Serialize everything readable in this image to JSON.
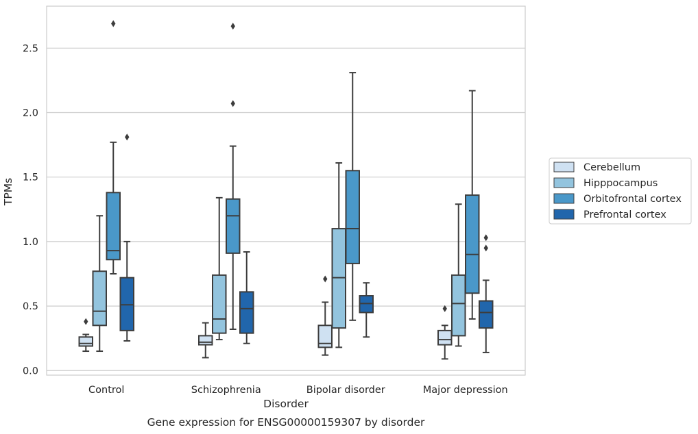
{
  "chart_data": {
    "type": "box",
    "caption": "Gene expression for ENSG00000159307 by disorder",
    "xlabel": "Disorder",
    "ylabel": "TPMs",
    "ylim": [
      -0.03,
      2.83
    ],
    "yticks": [
      "0.0",
      "0.5",
      "1.0",
      "1.5",
      "2.0",
      "2.5"
    ],
    "ytick_values": [
      0.0,
      0.5,
      1.0,
      1.5,
      2.0,
      2.5
    ],
    "categories": [
      "Control",
      "Schizophrenia",
      "Bipolar disorder",
      "Major depression"
    ],
    "grid": "horizontal",
    "legend_position": "right",
    "series": [
      {
        "name": "Cerebellum",
        "color": "#cfe1f2",
        "boxes": [
          {
            "whislo": 0.15,
            "q1": 0.19,
            "med": 0.21,
            "q3": 0.26,
            "whishi": 0.28,
            "fliers": [
              0.38
            ]
          },
          {
            "whislo": 0.1,
            "q1": 0.2,
            "med": 0.22,
            "q3": 0.27,
            "whishi": 0.37,
            "fliers": []
          },
          {
            "whislo": 0.12,
            "q1": 0.18,
            "med": 0.21,
            "q3": 0.35,
            "whishi": 0.53,
            "fliers": [
              0.71
            ]
          },
          {
            "whislo": 0.09,
            "q1": 0.2,
            "med": 0.24,
            "q3": 0.31,
            "whishi": 0.35,
            "fliers": [
              0.48
            ]
          }
        ]
      },
      {
        "name": "Hipppocampus",
        "color": "#93c4de",
        "boxes": [
          {
            "whislo": 0.15,
            "q1": 0.35,
            "med": 0.46,
            "q3": 0.77,
            "whishi": 1.2,
            "fliers": []
          },
          {
            "whislo": 0.24,
            "q1": 0.29,
            "med": 0.4,
            "q3": 0.74,
            "whishi": 1.34,
            "fliers": []
          },
          {
            "whislo": 0.18,
            "q1": 0.33,
            "med": 0.72,
            "q3": 1.1,
            "whishi": 1.61,
            "fliers": []
          },
          {
            "whislo": 0.19,
            "q1": 0.27,
            "med": 0.52,
            "q3": 0.74,
            "whishi": 1.29,
            "fliers": []
          }
        ]
      },
      {
        "name": "Orbitofrontal cortex",
        "color": "#4a98c9",
        "boxes": [
          {
            "whislo": 0.75,
            "q1": 0.86,
            "med": 0.93,
            "q3": 1.38,
            "whishi": 1.77,
            "fliers": [
              2.69
            ]
          },
          {
            "whislo": 0.32,
            "q1": 0.91,
            "med": 1.2,
            "q3": 1.33,
            "whishi": 1.74,
            "fliers": [
              2.07,
              2.67
            ]
          },
          {
            "whislo": 0.39,
            "q1": 0.83,
            "med": 1.1,
            "q3": 1.55,
            "whishi": 2.31,
            "fliers": []
          },
          {
            "whislo": 0.4,
            "q1": 0.6,
            "med": 0.9,
            "q3": 1.36,
            "whishi": 2.17,
            "fliers": []
          }
        ]
      },
      {
        "name": "Prefrontal cortex",
        "color": "#2166ac",
        "boxes": [
          {
            "whislo": 0.23,
            "q1": 0.31,
            "med": 0.51,
            "q3": 0.72,
            "whishi": 1.0,
            "fliers": [
              1.81
            ]
          },
          {
            "whislo": 0.21,
            "q1": 0.29,
            "med": 0.48,
            "q3": 0.61,
            "whishi": 0.92,
            "fliers": []
          },
          {
            "whislo": 0.26,
            "q1": 0.45,
            "med": 0.52,
            "q3": 0.58,
            "whishi": 0.68,
            "fliers": []
          },
          {
            "whislo": 0.14,
            "q1": 0.33,
            "med": 0.45,
            "q3": 0.54,
            "whishi": 0.7,
            "fliers": [
              0.95,
              1.03
            ]
          }
        ]
      }
    ]
  }
}
